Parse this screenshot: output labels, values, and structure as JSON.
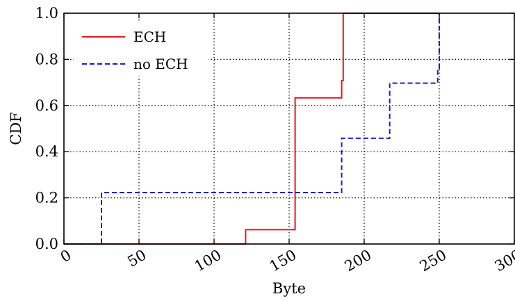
{
  "chart_data": {
    "type": "line",
    "title": "",
    "xlabel": "Byte",
    "ylabel": "CDF",
    "xlim": [
      0,
      300
    ],
    "ylim": [
      0,
      1.0
    ],
    "xticks": [
      0,
      50,
      100,
      150,
      200,
      250,
      300
    ],
    "yticks": [
      0.0,
      0.2,
      0.4,
      0.6,
      0.8,
      1.0
    ],
    "xtick_labels": [
      "0",
      "50",
      "100",
      "150",
      "200",
      "250",
      "300"
    ],
    "ytick_labels": [
      "0.0",
      "0.2",
      "0.4",
      "0.6",
      "0.8",
      "1.0"
    ],
    "grid": true,
    "legend_placement": "top-left",
    "series": [
      {
        "name": "ECH",
        "color": "#e8161b",
        "style": "solid",
        "points": [
          [
            0,
            0
          ],
          [
            121,
            0
          ],
          [
            121,
            0.062
          ],
          [
            154,
            0.062
          ],
          [
            154,
            0.633
          ],
          [
            185,
            0.633
          ],
          [
            185,
            0.708
          ],
          [
            186,
            0.708
          ],
          [
            186,
            1.0
          ],
          [
            250,
            1.0
          ]
        ]
      },
      {
        "name": "no ECH",
        "color": "#1a1ad6",
        "style": "dashed",
        "points": [
          [
            0,
            0
          ],
          [
            25,
            0
          ],
          [
            25,
            0.223
          ],
          [
            185,
            0.223
          ],
          [
            185,
            0.458
          ],
          [
            217,
            0.458
          ],
          [
            217,
            0.697
          ],
          [
            249,
            0.697
          ],
          [
            249,
            0.76
          ],
          [
            250,
            0.76
          ],
          [
            250,
            1.0
          ]
        ]
      }
    ]
  }
}
